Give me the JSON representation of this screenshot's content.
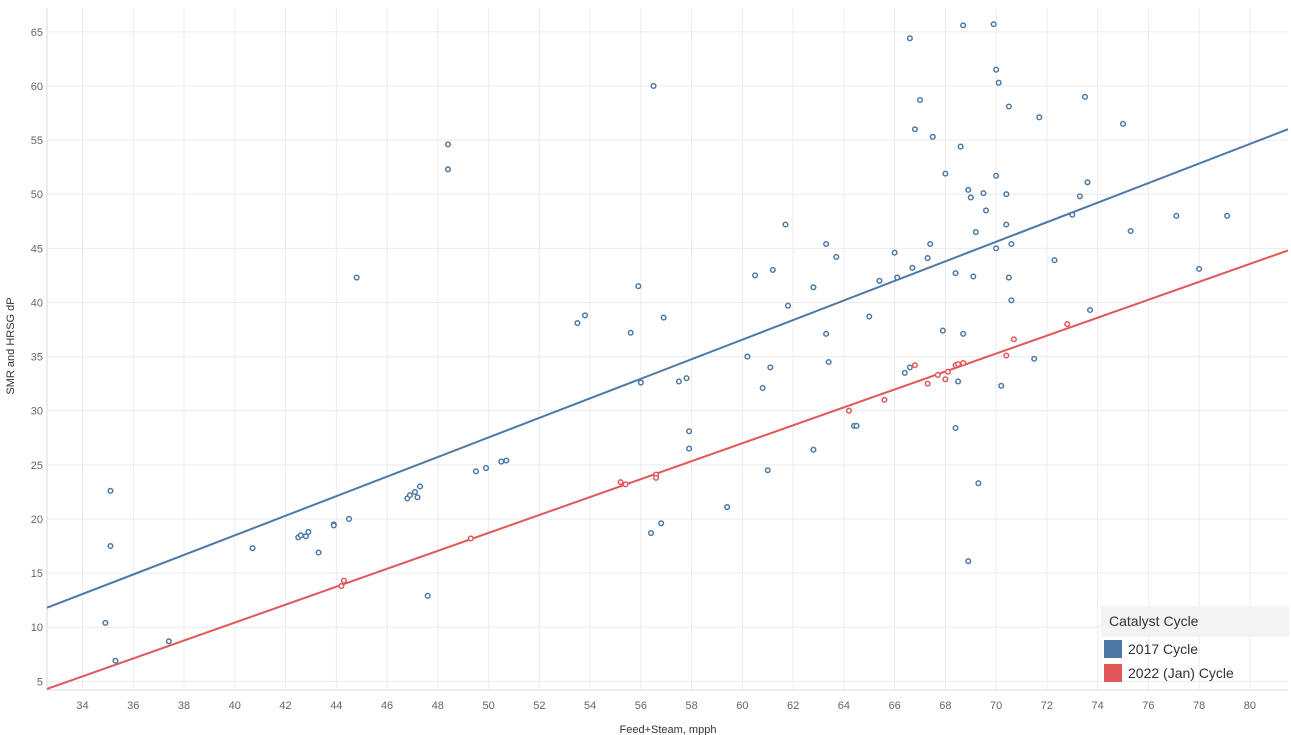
{
  "chart_data": {
    "type": "scatter",
    "title": "",
    "xlabel": "Feed+Steam, mpph",
    "ylabel": "SMR and HRSG dP",
    "xlim": [
      32.6,
      81.5
    ],
    "ylim": [
      4.2,
      67.2
    ],
    "x_ticks": [
      34,
      36,
      38,
      40,
      42,
      44,
      46,
      48,
      50,
      52,
      54,
      56,
      58,
      60,
      62,
      64,
      66,
      68,
      70,
      72,
      74,
      76,
      78,
      80
    ],
    "y_ticks": [
      5,
      10,
      15,
      20,
      25,
      30,
      35,
      40,
      45,
      50,
      55,
      60,
      65
    ],
    "grid": true,
    "legend": {
      "title": "Catalyst Cycle",
      "placement": "bottom-right"
    },
    "series": [
      {
        "name": "2017 Cycle",
        "color": "#4e79a7",
        "trendline": {
          "x": [
            32.6,
            81.5
          ],
          "y": [
            11.8,
            56.0
          ]
        },
        "points": [
          [
            34.9,
            10.4
          ],
          [
            35.1,
            22.6
          ],
          [
            35.1,
            17.5
          ],
          [
            35.3,
            6.9
          ],
          [
            37.4,
            8.7
          ],
          [
            40.7,
            17.3
          ],
          [
            42.5,
            18.3
          ],
          [
            42.6,
            18.5
          ],
          [
            42.8,
            18.4
          ],
          [
            42.9,
            18.8
          ],
          [
            43.3,
            16.9
          ],
          [
            43.9,
            19.5
          ],
          [
            43.9,
            19.4
          ],
          [
            44.5,
            20.0
          ],
          [
            44.8,
            42.3
          ],
          [
            46.8,
            21.9
          ],
          [
            46.9,
            22.2
          ],
          [
            47.1,
            22.5
          ],
          [
            47.2,
            22.0
          ],
          [
            47.3,
            23.0
          ],
          [
            47.6,
            12.9
          ],
          [
            48.4,
            54.6
          ],
          [
            48.4,
            52.3
          ],
          [
            49.5,
            24.4
          ],
          [
            49.9,
            24.7
          ],
          [
            50.5,
            25.3
          ],
          [
            50.7,
            25.4
          ],
          [
            53.5,
            38.1
          ],
          [
            53.8,
            38.8
          ],
          [
            55.6,
            37.2
          ],
          [
            55.9,
            41.5
          ],
          [
            56.0,
            32.6
          ],
          [
            56.4,
            18.7
          ],
          [
            56.5,
            60.0
          ],
          [
            56.8,
            19.6
          ],
          [
            56.9,
            38.6
          ],
          [
            57.5,
            32.7
          ],
          [
            57.8,
            33.0
          ],
          [
            57.9,
            28.1
          ],
          [
            57.9,
            26.5
          ],
          [
            59.4,
            21.1
          ],
          [
            60.2,
            35.0
          ],
          [
            60.5,
            42.5
          ],
          [
            60.8,
            32.1
          ],
          [
            61.0,
            24.5
          ],
          [
            61.1,
            34.0
          ],
          [
            61.2,
            43.0
          ],
          [
            61.7,
            47.2
          ],
          [
            61.8,
            39.7
          ],
          [
            62.8,
            41.4
          ],
          [
            62.8,
            26.4
          ],
          [
            63.3,
            45.4
          ],
          [
            63.3,
            37.1
          ],
          [
            63.4,
            34.5
          ],
          [
            63.7,
            44.2
          ],
          [
            64.4,
            28.6
          ],
          [
            64.5,
            28.6
          ],
          [
            65.0,
            38.7
          ],
          [
            65.4,
            42.0
          ],
          [
            66.0,
            44.6
          ],
          [
            66.1,
            42.3
          ],
          [
            66.4,
            33.5
          ],
          [
            66.6,
            34.0
          ],
          [
            66.6,
            64.4
          ],
          [
            66.7,
            43.2
          ],
          [
            66.8,
            56.0
          ],
          [
            67.0,
            58.7
          ],
          [
            67.3,
            44.1
          ],
          [
            67.4,
            45.4
          ],
          [
            67.5,
            55.3
          ],
          [
            67.9,
            37.4
          ],
          [
            68.0,
            51.9
          ],
          [
            68.4,
            28.4
          ],
          [
            68.4,
            42.7
          ],
          [
            68.5,
            32.7
          ],
          [
            68.6,
            54.4
          ],
          [
            68.7,
            37.1
          ],
          [
            68.7,
            65.6
          ],
          [
            68.9,
            16.1
          ],
          [
            68.9,
            50.4
          ],
          [
            69.0,
            49.7
          ],
          [
            69.1,
            42.4
          ],
          [
            69.2,
            46.5
          ],
          [
            69.3,
            23.3
          ],
          [
            69.5,
            50.1
          ],
          [
            69.6,
            48.5
          ],
          [
            69.9,
            65.7
          ],
          [
            70.0,
            51.7
          ],
          [
            70.0,
            45.0
          ],
          [
            70.0,
            61.5
          ],
          [
            70.1,
            60.3
          ],
          [
            70.2,
            32.3
          ],
          [
            70.4,
            47.2
          ],
          [
            70.4,
            50.0
          ],
          [
            70.5,
            42.3
          ],
          [
            70.5,
            58.1
          ],
          [
            70.6,
            45.4
          ],
          [
            70.6,
            40.2
          ],
          [
            71.5,
            34.8
          ],
          [
            71.7,
            57.1
          ],
          [
            72.3,
            43.9
          ],
          [
            73.0,
            48.1
          ],
          [
            73.3,
            49.8
          ],
          [
            73.5,
            59.0
          ],
          [
            73.6,
            51.1
          ],
          [
            73.7,
            39.3
          ],
          [
            75.0,
            56.5
          ],
          [
            75.3,
            46.6
          ],
          [
            77.1,
            48.0
          ],
          [
            78.0,
            43.1
          ],
          [
            79.1,
            48.0
          ]
        ]
      },
      {
        "name": "2022 (Jan) Cycle",
        "color": "#e15759",
        "trendline": {
          "x": [
            32.6,
            81.5
          ],
          "y": [
            4.3,
            44.8
          ]
        },
        "points": [
          [
            44.2,
            13.8
          ],
          [
            44.3,
            14.3
          ],
          [
            49.3,
            18.2
          ],
          [
            55.2,
            23.4
          ],
          [
            55.4,
            23.2
          ],
          [
            56.6,
            24.1
          ],
          [
            56.6,
            23.8
          ],
          [
            64.2,
            30.0
          ],
          [
            65.6,
            31.0
          ],
          [
            66.8,
            34.2
          ],
          [
            67.3,
            32.5
          ],
          [
            67.7,
            33.3
          ],
          [
            68.0,
            32.9
          ],
          [
            68.1,
            33.6
          ],
          [
            68.4,
            34.2
          ],
          [
            68.5,
            34.3
          ],
          [
            68.7,
            34.4
          ],
          [
            70.4,
            35.1
          ],
          [
            70.7,
            36.6
          ],
          [
            72.8,
            38.0
          ]
        ]
      }
    ]
  }
}
